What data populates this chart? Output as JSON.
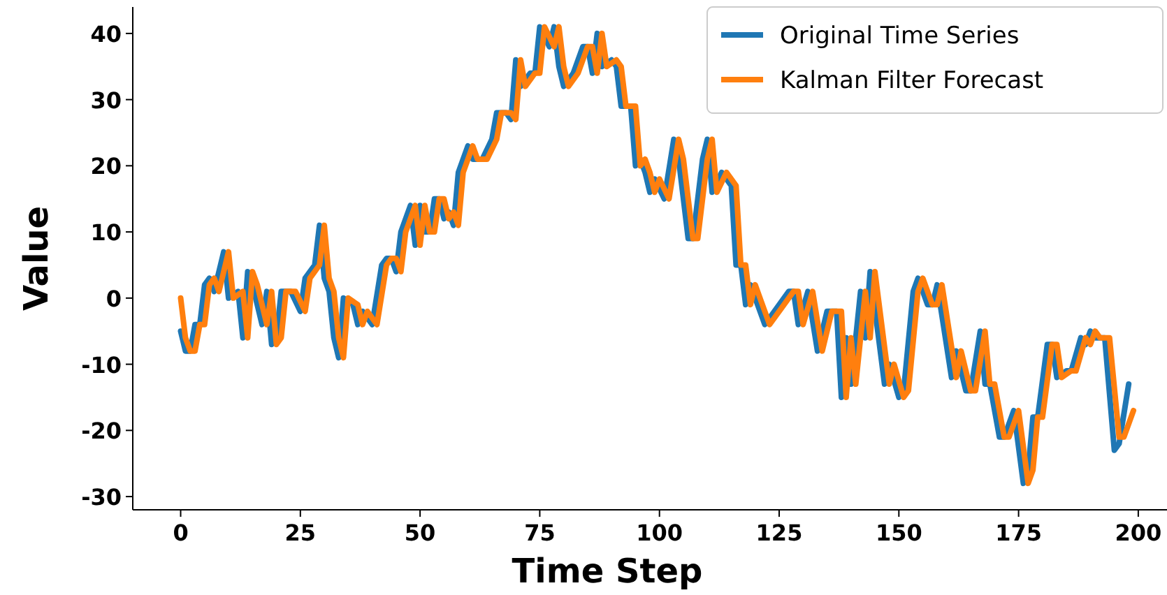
{
  "chart_data": {
    "type": "line",
    "xlabel": "Time Step",
    "ylabel": "Value",
    "xlim": [
      -10,
      206
    ],
    "ylim": [
      -32,
      44
    ],
    "xticks": [
      0,
      25,
      50,
      75,
      100,
      125,
      150,
      175,
      200
    ],
    "yticks": [
      -30,
      -20,
      -10,
      0,
      10,
      20,
      30,
      40
    ],
    "grid": false,
    "legend": "top right",
    "line_style": "solid",
    "marker": "none",
    "series": [
      {
        "name": "Original Time Series",
        "color": "#1f77b4",
        "x": [
          0,
          1,
          2,
          3,
          4,
          5,
          6,
          7,
          9,
          10,
          12,
          13,
          14,
          15,
          17,
          18,
          19,
          20,
          21,
          23,
          25,
          26,
          28,
          29,
          30,
          31,
          32,
          33,
          34,
          36,
          37,
          38,
          40,
          42,
          43,
          44,
          45,
          46,
          48,
          49,
          50,
          51,
          52,
          53,
          54,
          55,
          56,
          57,
          58,
          59,
          60,
          61,
          63,
          65,
          66,
          68,
          69,
          70,
          71,
          73,
          74,
          75,
          77,
          78,
          79,
          80,
          82,
          84,
          85,
          86,
          87,
          88,
          90,
          91,
          92,
          94,
          95,
          96,
          97,
          98,
          99,
          101,
          103,
          104,
          106,
          107,
          109,
          110,
          111,
          113,
          115,
          116,
          117,
          118,
          119,
          122,
          125,
          127,
          128,
          129,
          131,
          133,
          135,
          137,
          138,
          139,
          140,
          142,
          143,
          144,
          147,
          148,
          150,
          151,
          153,
          154,
          156,
          157,
          158,
          161,
          162,
          164,
          165,
          167,
          168,
          169,
          171,
          172,
          174,
          176,
          177,
          178,
          179,
          181,
          182,
          183,
          185,
          186,
          188,
          189,
          190,
          191,
          193,
          195,
          196,
          198
        ],
        "values": [
          -5,
          -8,
          -8,
          -4,
          -4,
          2,
          3,
          1,
          7,
          0,
          1,
          -6,
          4,
          2,
          -4,
          1,
          -7,
          -6,
          1,
          1,
          -2,
          3,
          5,
          11,
          3,
          1,
          -6,
          -9,
          0,
          -1,
          -4,
          -2,
          -4,
          5,
          6,
          6,
          4,
          10,
          14,
          8,
          14,
          10,
          10,
          15,
          15,
          12,
          13,
          11,
          19,
          21,
          23,
          21,
          21,
          24,
          28,
          28,
          27,
          36,
          32,
          34,
          34,
          41,
          38,
          41,
          35,
          32,
          34,
          38,
          38,
          34,
          40,
          35,
          36,
          35,
          29,
          29,
          20,
          21,
          19,
          16,
          18,
          15,
          24,
          21,
          9,
          9,
          21,
          24,
          16,
          19,
          17,
          5,
          5,
          -1,
          2,
          -4,
          -1,
          1,
          1,
          -4,
          1,
          -8,
          -2,
          -2,
          -15,
          -6,
          -13,
          1,
          -6,
          4,
          -13,
          -10,
          -15,
          -14,
          1,
          3,
          -1,
          -1,
          2,
          -12,
          -8,
          -14,
          -14,
          -5,
          -13,
          -13,
          -21,
          -21,
          -17,
          -28,
          -26,
          -18,
          -18,
          -7,
          -7,
          -12,
          -11,
          -11,
          -6,
          -7,
          -5,
          -6,
          -6,
          -23,
          -22,
          -13
        ]
      },
      {
        "name": "Kalman Filter Forecast",
        "color": "#ff7f0e",
        "x": [
          0,
          1,
          2,
          3,
          4,
          5,
          6,
          7,
          8,
          10,
          11,
          13,
          14,
          15,
          16,
          18,
          19,
          20,
          21,
          22,
          24,
          26,
          27,
          29,
          30,
          31,
          32,
          33,
          34,
          35,
          37,
          38,
          39,
          41,
          43,
          44,
          45,
          46,
          47,
          49,
          50,
          51,
          52,
          53,
          54,
          55,
          56,
          57,
          58,
          59,
          60,
          61,
          62,
          64,
          66,
          67,
          69,
          70,
          71,
          72,
          74,
          75,
          76,
          78,
          79,
          80,
          81,
          83,
          85,
          86,
          87,
          88,
          89,
          91,
          92,
          93,
          95,
          96,
          97,
          98,
          99,
          100,
          102,
          104,
          105,
          107,
          108,
          110,
          111,
          112,
          114,
          116,
          117,
          118,
          119,
          120,
          123,
          126,
          128,
          129,
          130,
          132,
          134,
          136,
          138,
          139,
          140,
          141,
          143,
          144,
          145,
          148,
          149,
          151,
          152,
          154,
          155,
          157,
          158,
          159,
          162,
          163,
          165,
          166,
          168,
          169,
          170,
          172,
          173,
          175,
          177,
          178,
          179,
          180,
          182,
          183,
          184,
          186,
          187,
          189,
          190,
          191,
          192,
          194,
          196,
          197,
          199
        ],
        "values": [
          0,
          -6,
          -8,
          -8,
          -4,
          -4,
          2,
          3,
          1,
          7,
          0,
          1,
          -6,
          4,
          2,
          -4,
          1,
          -7,
          -6,
          1,
          1,
          -2,
          3,
          5,
          11,
          3,
          1,
          -6,
          -9,
          0,
          -1,
          -4,
          -2,
          -4,
          5,
          6,
          6,
          4,
          10,
          14,
          8,
          14,
          10,
          10,
          15,
          15,
          12,
          13,
          11,
          19,
          21,
          23,
          21,
          21,
          24,
          28,
          28,
          27,
          36,
          32,
          34,
          34,
          41,
          38,
          41,
          35,
          32,
          34,
          38,
          38,
          34,
          40,
          35,
          36,
          35,
          29,
          29,
          20,
          21,
          19,
          16,
          18,
          15,
          24,
          21,
          9,
          9,
          21,
          24,
          16,
          19,
          17,
          5,
          5,
          -1,
          2,
          -4,
          -1,
          1,
          1,
          -4,
          1,
          -8,
          -2,
          -2,
          -15,
          -6,
          -13,
          1,
          -6,
          4,
          -13,
          -10,
          -15,
          -14,
          1,
          3,
          -1,
          -1,
          2,
          -12,
          -8,
          -14,
          -14,
          -5,
          -13,
          -13,
          -21,
          -21,
          -17,
          -28,
          -26,
          -18,
          -18,
          -7,
          -7,
          -12,
          -11,
          -11,
          -6,
          -7,
          -5,
          -6,
          -6,
          -21,
          -21,
          -17
        ]
      }
    ]
  }
}
